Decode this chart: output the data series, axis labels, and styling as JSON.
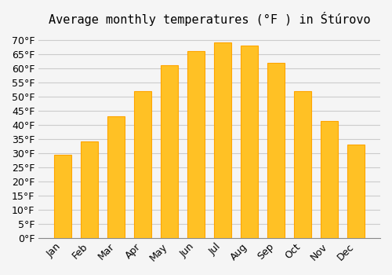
{
  "title": "Average monthly temperatures (°F ) in Śtúrovo",
  "months": [
    "Jan",
    "Feb",
    "Mar",
    "Apr",
    "May",
    "Jun",
    "Jul",
    "Aug",
    "Sep",
    "Oct",
    "Nov",
    "Dec"
  ],
  "values": [
    29.3,
    34.0,
    43.0,
    52.0,
    61.0,
    66.0,
    69.1,
    68.0,
    62.0,
    52.0,
    41.3,
    33.0
  ],
  "bar_color": "#FFA500",
  "bar_edge_color": "#FF8C00",
  "background_color": "#f5f5f5",
  "grid_color": "#cccccc",
  "ylim": [
    0,
    72
  ],
  "yticks": [
    0,
    5,
    10,
    15,
    20,
    25,
    30,
    35,
    40,
    45,
    50,
    55,
    60,
    65,
    70
  ],
  "title_fontsize": 11,
  "tick_fontsize": 9,
  "bar_color_fill": "#FFC125",
  "bar_color_edge": "#FFA500"
}
